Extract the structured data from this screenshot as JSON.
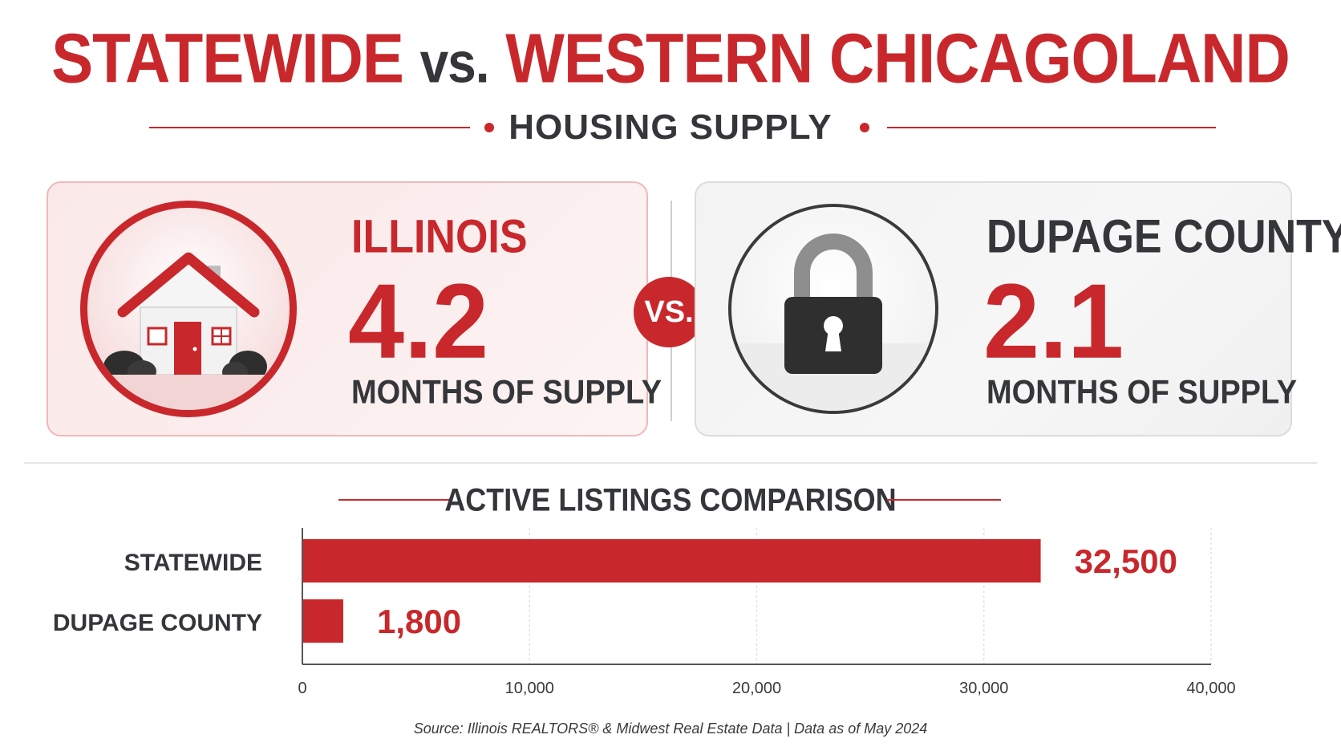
{
  "header": {
    "title_part1": "STATEWIDE",
    "title_vs": "vs.",
    "title_part2": "WESTERN CHICAGOLAND",
    "subtitle": "HOUSING SUPPLY"
  },
  "comparison": {
    "left": {
      "name": "ILLINOIS",
      "value": "4.2",
      "label": "MONTHS OF SUPPLY",
      "icon": "house-icon"
    },
    "vs_label": "VS.",
    "right": {
      "name": "DUPAGE COUNTY",
      "value": "2.1",
      "label": "MONTHS OF SUPPLY",
      "icon": "padlock-icon"
    }
  },
  "chart_data": {
    "type": "bar",
    "orientation": "horizontal",
    "title": "ACTIVE LISTINGS COMPARISON",
    "categories": [
      "STATEWIDE",
      "DUPAGE COUNTY"
    ],
    "values": [
      32500,
      1800
    ],
    "value_labels": [
      "32,500",
      "1,800"
    ],
    "xlim": [
      0,
      40000
    ],
    "xticks": [
      0,
      10000,
      20000,
      30000,
      40000
    ],
    "xtick_labels": [
      "0",
      "10,000",
      "20,000",
      "30,000",
      "40,000"
    ],
    "xlabel": "",
    "ylabel": "",
    "grid": true,
    "bar_color": "#c8282c"
  },
  "footer": {
    "source": "Source: Illinois REALTORS® & Midwest Real Estate Data | Data as of May 2024"
  },
  "colors": {
    "accent": "#c8282c",
    "dark": "#34363a"
  }
}
